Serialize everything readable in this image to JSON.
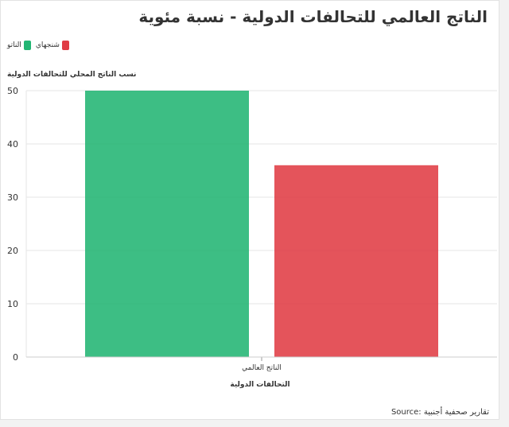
{
  "chart_data": {
    "type": "bar",
    "title": "الناتج العالمي للتحالفات الدولية - نسبة مئوية",
    "ylabel": "نسب الناتج المحلي للتحالفات الدولية",
    "xlabel": "التحالفات الدولية",
    "categories": [
      "الناتج العالمي"
    ],
    "series": [
      {
        "name": "الناتو",
        "values": [
          50
        ],
        "color": "#22b573"
      },
      {
        "name": "شنجهاي",
        "values": [
          36
        ],
        "color": "#e03c44"
      }
    ],
    "ylim": [
      0,
      50
    ],
    "yticks": [
      "0",
      "10",
      "20",
      "30",
      "40",
      "50"
    ],
    "grid": true,
    "legend": "top-left"
  },
  "source": "Source: تقارير صحفية أجنبية"
}
